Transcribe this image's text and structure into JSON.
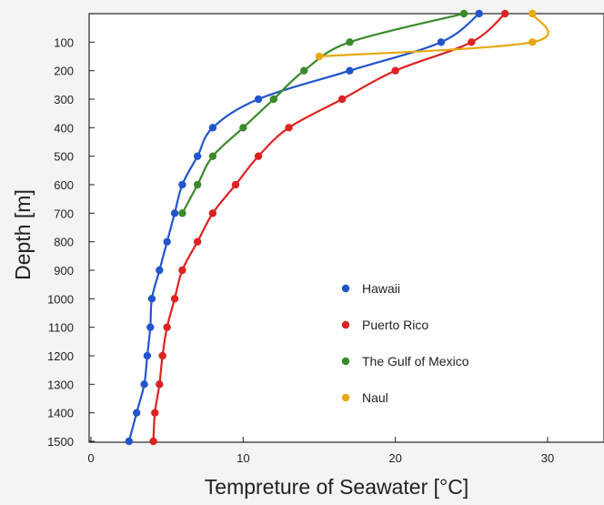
{
  "chart_data": {
    "type": "line",
    "xlabel": "Tempreture of Seawater [°C]",
    "ylabel": "Depth [m]",
    "xlim": [
      0,
      34
    ],
    "ylim": [
      1500,
      0
    ],
    "y_inverted": true,
    "grid": false,
    "legend_position": "inside-lower-right",
    "x_ticks": [
      "0",
      "10",
      "20",
      "30"
    ],
    "x_tick_values": [
      0,
      10,
      20,
      30
    ],
    "y_ticks": [
      "100",
      "200",
      "300",
      "400",
      "500",
      "600",
      "700",
      "800",
      "900",
      "1000",
      "1100",
      "1200",
      "1300",
      "1400",
      "1500"
    ],
    "y_tick_values": [
      100,
      200,
      300,
      400,
      500,
      600,
      700,
      800,
      900,
      1000,
      1100,
      1200,
      1300,
      1400,
      1500
    ],
    "series": [
      {
        "name": "Hawaii",
        "color": "#2255cc",
        "points": [
          [
            25.5,
            0
          ],
          [
            23,
            100
          ],
          [
            17,
            200
          ],
          [
            11,
            300
          ],
          [
            8,
            400
          ],
          [
            7,
            500
          ],
          [
            6,
            600
          ],
          [
            5.5,
            700
          ],
          [
            5,
            800
          ],
          [
            4.5,
            900
          ],
          [
            4,
            1000
          ],
          [
            3.9,
            1100
          ],
          [
            3.7,
            1200
          ],
          [
            3.5,
            1300
          ],
          [
            3,
            1400
          ],
          [
            2.5,
            1500
          ]
        ]
      },
      {
        "name": "Puerto Rico",
        "color": "#dd2222",
        "points": [
          [
            27.2,
            0
          ],
          [
            25,
            100
          ],
          [
            20,
            200
          ],
          [
            16.5,
            300
          ],
          [
            13,
            400
          ],
          [
            11,
            500
          ],
          [
            9.5,
            600
          ],
          [
            8,
            700
          ],
          [
            7,
            800
          ],
          [
            6,
            900
          ],
          [
            5.5,
            1000
          ],
          [
            5,
            1100
          ],
          [
            4.7,
            1200
          ],
          [
            4.5,
            1300
          ],
          [
            4.2,
            1400
          ],
          [
            4.1,
            1500
          ]
        ]
      },
      {
        "name": "The Gulf of Mexico",
        "color": "#3a8a2a",
        "points": [
          [
            24.5,
            0
          ],
          [
            17,
            100
          ],
          [
            14,
            200
          ],
          [
            12,
            300
          ],
          [
            10,
            400
          ],
          [
            8,
            500
          ],
          [
            7,
            600
          ],
          [
            6,
            700
          ]
        ]
      },
      {
        "name": "Naul",
        "color": "#e8a810",
        "points": [
          [
            29,
            0
          ],
          [
            29,
            100
          ],
          [
            15,
            150
          ]
        ]
      }
    ]
  }
}
